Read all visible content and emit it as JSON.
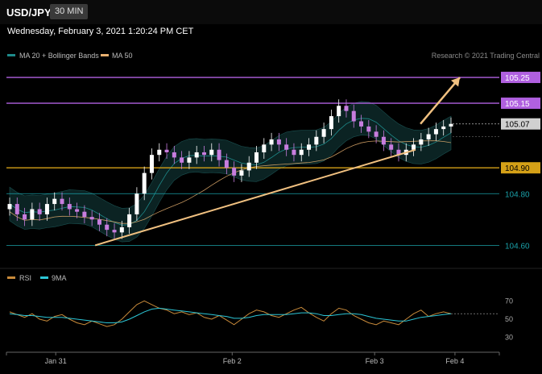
{
  "header": {
    "symbol": "USD/JPY",
    "timeframe": "30 MIN",
    "datetime": "Wednesday, February 3, 2021 1:20:24 PM CET"
  },
  "chart_data": {
    "type": "candlestick",
    "copyright": "Research © 2021 Trading Central",
    "legend": [
      {
        "name": "MA 20 + Bollinger Bands",
        "color": "#1e8a8a"
      },
      {
        "name": "MA 50",
        "color": "#e8b070"
      }
    ],
    "price_ylim": [
      104.52,
      105.3
    ],
    "current_price": "105.07",
    "horizontal_levels": [
      {
        "value": 105.25,
        "label": "105.25",
        "color": "#b060e0",
        "filled": true
      },
      {
        "value": 105.15,
        "label": "105.15",
        "color": "#b060e0",
        "filled": true
      },
      {
        "value": 104.9,
        "label": "104.90",
        "color": "#d4a017",
        "filled": true
      },
      {
        "value": 104.8,
        "label": "104.80",
        "color": "#1aa0a8",
        "filled": false
      },
      {
        "value": 104.6,
        "label": "104.60",
        "color": "#1aa0a8",
        "filled": false
      }
    ],
    "trend_line": {
      "from": [
        0.18,
        104.6
      ],
      "to": [
        0.83,
        104.97
      ]
    },
    "projection_arrow": {
      "from": [
        0.84,
        105.07
      ],
      "to": [
        0.92,
        105.25
      ]
    },
    "candle_close_path": [
      104.76,
      104.72,
      104.7,
      104.74,
      104.72,
      104.76,
      104.78,
      104.76,
      104.74,
      104.73,
      104.71,
      104.7,
      104.68,
      104.66,
      104.65,
      104.67,
      104.72,
      104.8,
      104.88,
      104.95,
      104.97,
      104.96,
      104.94,
      104.92,
      104.94,
      104.96,
      104.95,
      104.97,
      104.93,
      104.9,
      104.87,
      104.89,
      104.92,
      104.96,
      104.99,
      105.01,
      104.99,
      104.97,
      104.95,
      104.97,
      104.99,
      105.02,
      105.05,
      105.1,
      105.14,
      105.12,
      105.08,
      105.06,
      105.04,
      105.02,
      104.99,
      104.97,
      104.95,
      104.97,
      104.99,
      105.01,
      105.03,
      105.05,
      105.06,
      105.07
    ],
    "rsi": {
      "legend": [
        {
          "name": "RSI",
          "color": "#c88a3a"
        },
        {
          "name": "9MA",
          "color": "#2cc6d6"
        }
      ],
      "ylim": [
        20,
        80
      ],
      "ticks": [
        "70",
        "50",
        "30"
      ],
      "rsi_values": [
        58,
        55,
        52,
        56,
        50,
        48,
        53,
        55,
        50,
        46,
        44,
        48,
        45,
        42,
        44,
        50,
        58,
        66,
        70,
        66,
        62,
        60,
        56,
        58,
        55,
        57,
        52,
        50,
        54,
        49,
        44,
        50,
        56,
        60,
        58,
        54,
        52,
        56,
        60,
        63,
        57,
        52,
        48,
        56,
        62,
        60,
        54,
        50,
        46,
        44,
        48,
        46,
        44,
        50,
        56,
        60,
        53,
        56,
        58,
        56
      ],
      "ma_values": [
        56,
        55,
        54,
        54,
        53,
        52,
        52,
        52,
        51,
        50,
        49,
        48,
        47,
        46,
        46,
        47,
        50,
        54,
        58,
        61,
        62,
        61,
        60,
        59,
        58,
        57,
        56,
        55,
        54,
        53,
        51,
        51,
        52,
        54,
        55,
        55,
        55,
        55,
        56,
        57,
        57,
        56,
        54,
        54,
        55,
        56,
        56,
        55,
        53,
        51,
        50,
        49,
        48,
        48,
        50,
        52,
        53,
        54,
        55,
        56
      ]
    },
    "x_tick_labels": [
      "Jan 31",
      "Feb 2",
      "Feb 3",
      "Feb 4"
    ]
  }
}
